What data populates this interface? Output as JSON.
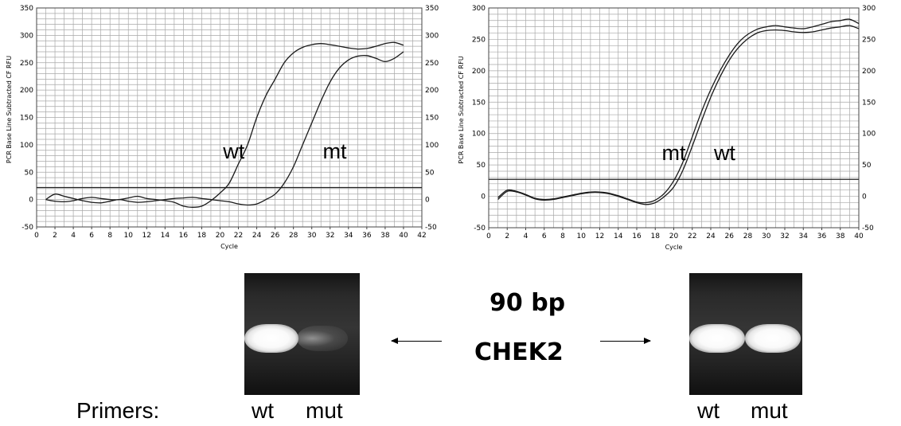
{
  "chart_data": [
    {
      "type": "line",
      "xlabel": "Cycle",
      "ylabel": "PCR Base Line Subtracted CF RFU",
      "xlim": [
        0,
        42
      ],
      "ylim": [
        -50,
        350
      ],
      "x_ticks": [
        0,
        2,
        4,
        6,
        8,
        10,
        12,
        14,
        16,
        18,
        20,
        22,
        24,
        26,
        28,
        30,
        32,
        34,
        36,
        38,
        40,
        42
      ],
      "y_ticks": [
        -50,
        0,
        50,
        100,
        150,
        200,
        250,
        300,
        350
      ],
      "grid": true,
      "threshold": 22,
      "annotations": [
        {
          "text": "wt",
          "x": 21.5,
          "y": 75
        },
        {
          "text": "mt",
          "x": 32.5,
          "y": 75
        }
      ],
      "series": [
        {
          "name": "wt",
          "x": [
            1,
            2,
            3,
            4,
            5,
            6,
            7,
            8,
            9,
            10,
            11,
            12,
            13,
            14,
            15,
            16,
            17,
            18,
            19,
            20,
            21,
            22,
            23,
            24,
            25,
            26,
            27,
            28,
            29,
            30,
            31,
            32,
            33,
            34,
            35,
            36,
            37,
            38,
            39,
            40
          ],
          "y": [
            0,
            -3,
            -4,
            -2,
            2,
            4,
            2,
            0,
            0,
            3,
            6,
            2,
            0,
            -2,
            -5,
            -12,
            -14,
            -12,
            -2,
            12,
            30,
            65,
            100,
            150,
            190,
            220,
            250,
            268,
            278,
            283,
            285,
            283,
            280,
            277,
            275,
            276,
            280,
            285,
            287,
            282
          ]
        },
        {
          "name": "mt",
          "x": [
            1,
            2,
            3,
            4,
            5,
            6,
            7,
            8,
            9,
            10,
            11,
            12,
            13,
            14,
            15,
            16,
            17,
            18,
            19,
            20,
            21,
            22,
            23,
            24,
            25,
            26,
            27,
            28,
            29,
            30,
            31,
            32,
            33,
            34,
            35,
            36,
            37,
            38,
            39,
            40
          ],
          "y": [
            0,
            10,
            6,
            2,
            -2,
            -5,
            -6,
            -3,
            0,
            -3,
            -5,
            -4,
            -2,
            0,
            2,
            3,
            4,
            2,
            0,
            -2,
            -4,
            -8,
            -10,
            -8,
            0,
            10,
            30,
            60,
            100,
            140,
            180,
            215,
            240,
            255,
            262,
            263,
            258,
            252,
            258,
            270
          ]
        }
      ]
    },
    {
      "type": "line",
      "xlabel": "Cycle",
      "ylabel": "PCR Base Line Subtracted CF RFU",
      "xlim": [
        0,
        40
      ],
      "ylim": [
        -50,
        300
      ],
      "x_ticks": [
        0,
        2,
        4,
        6,
        8,
        10,
        12,
        14,
        16,
        18,
        20,
        22,
        24,
        26,
        28,
        30,
        32,
        34,
        36,
        38,
        40
      ],
      "y_ticks": [
        -50,
        0,
        50,
        100,
        150,
        200,
        250,
        300
      ],
      "grid": true,
      "threshold": 27,
      "annotations": [
        {
          "text": "mt",
          "x": 20,
          "y": 58
        },
        {
          "text": "wt",
          "x": 25.5,
          "y": 58
        }
      ],
      "series": [
        {
          "name": "mt",
          "x": [
            1,
            2,
            3,
            4,
            5,
            6,
            7,
            8,
            9,
            10,
            11,
            12,
            13,
            14,
            15,
            16,
            17,
            18,
            19,
            20,
            21,
            22,
            23,
            24,
            25,
            26,
            27,
            28,
            29,
            30,
            31,
            32,
            33,
            34,
            35,
            36,
            37,
            38,
            39,
            40
          ],
          "y": [
            -2,
            10,
            8,
            3,
            -3,
            -5,
            -4,
            -1,
            2,
            5,
            7,
            7,
            5,
            1,
            -4,
            -9,
            -10,
            -6,
            5,
            25,
            55,
            95,
            135,
            170,
            200,
            225,
            245,
            258,
            266,
            270,
            272,
            270,
            268,
            267,
            270,
            274,
            278,
            280,
            282,
            275
          ]
        },
        {
          "name": "wt",
          "x": [
            1,
            2,
            3,
            4,
            5,
            6,
            7,
            8,
            9,
            10,
            11,
            12,
            13,
            14,
            15,
            16,
            17,
            18,
            19,
            20,
            21,
            22,
            23,
            24,
            25,
            26,
            27,
            28,
            29,
            30,
            31,
            32,
            33,
            34,
            35,
            36,
            37,
            38,
            39,
            40
          ],
          "y": [
            -5,
            8,
            7,
            2,
            -4,
            -6,
            -5,
            -2,
            1,
            4,
            6,
            6,
            4,
            0,
            -5,
            -10,
            -13,
            -10,
            0,
            15,
            42,
            80,
            120,
            158,
            190,
            217,
            237,
            251,
            260,
            264,
            265,
            264,
            262,
            261,
            262,
            265,
            268,
            270,
            272,
            267
          ]
        }
      ]
    }
  ],
  "gel": {
    "size_label": "90 bp",
    "gene_label": "CHEK2",
    "primers_label": "Primers:",
    "left_lanes": [
      "wt",
      "mut"
    ],
    "right_lanes": [
      "wt",
      "mut"
    ],
    "left_bands": [
      1,
      0.25
    ],
    "right_bands": [
      1,
      1
    ]
  }
}
